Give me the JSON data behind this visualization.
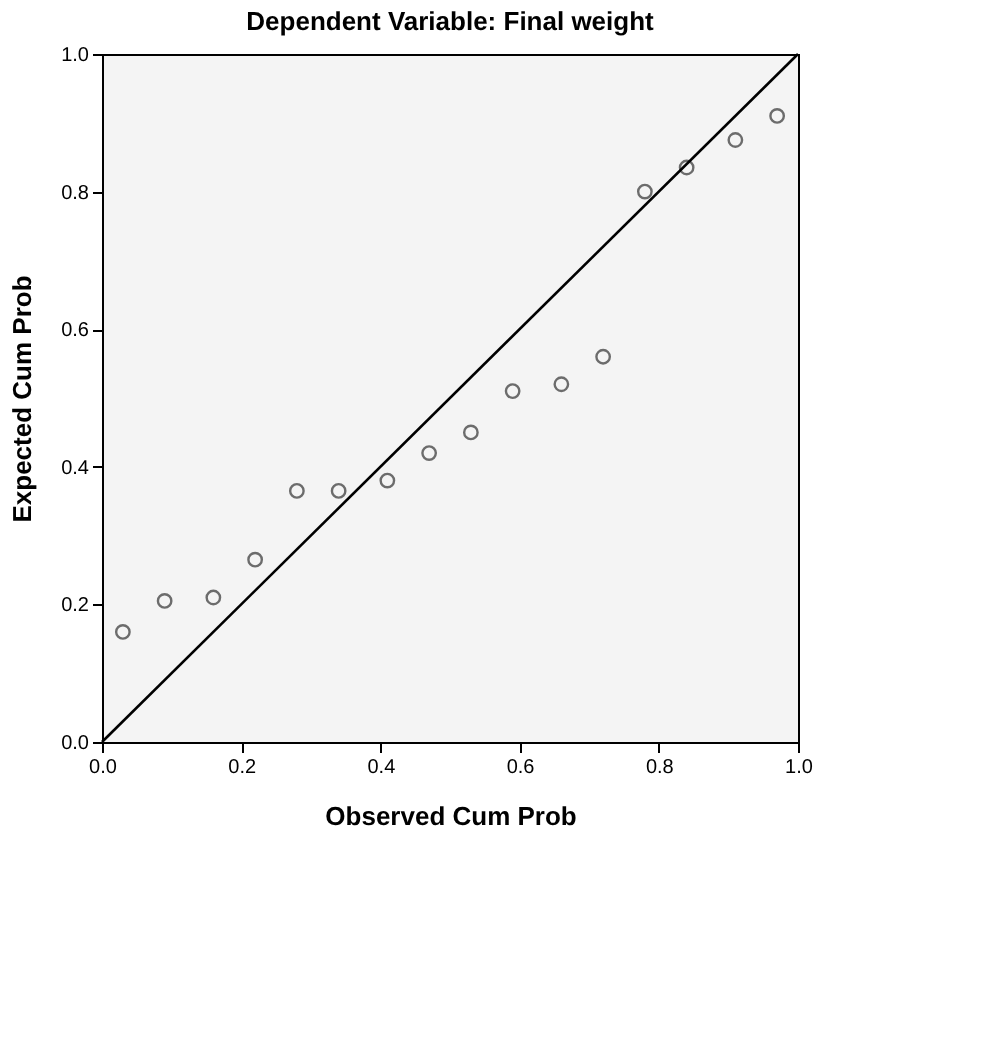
{
  "chart_data": {
    "type": "scatter",
    "title": "Dependent Variable: Final weight",
    "xlabel": "Observed Cum Prob",
    "ylabel": "Expected Cum Prob",
    "xlim": [
      0,
      1
    ],
    "ylim": [
      0,
      1
    ],
    "xticks": [
      {
        "value": 0,
        "label": "0.0"
      },
      0.2,
      0.4,
      0.6,
      0.8,
      {
        "value": 1,
        "label": "1.0"
      }
    ],
    "yticks": [
      {
        "value": 0,
        "label": "0.0"
      },
      0.2,
      0.4,
      0.6,
      0.8,
      {
        "value": 1,
        "label": "1.0"
      }
    ],
    "grid": false,
    "marker": "circle",
    "series": [
      {
        "color": "#333333",
        "x": [
          0.03,
          0.09,
          0.16,
          0.22,
          0.28,
          0.34,
          0.41,
          0.47,
          0.53,
          0.59,
          0.66,
          0.72,
          0.78,
          0.84,
          0.91,
          0.97
        ],
        "values": [
          0.16,
          0.205,
          0.21,
          0.265,
          0.365,
          0.365,
          0.38,
          0.42,
          0.45,
          0.51,
          0.52,
          0.56,
          0.8,
          0.835,
          0.875,
          0.91
        ]
      },
      {
        "type": "line",
        "marker": "none",
        "line_style": "solid",
        "color": "#000000",
        "x": [
          0,
          1
        ],
        "values": [
          0,
          1
        ]
      }
    ]
  }
}
